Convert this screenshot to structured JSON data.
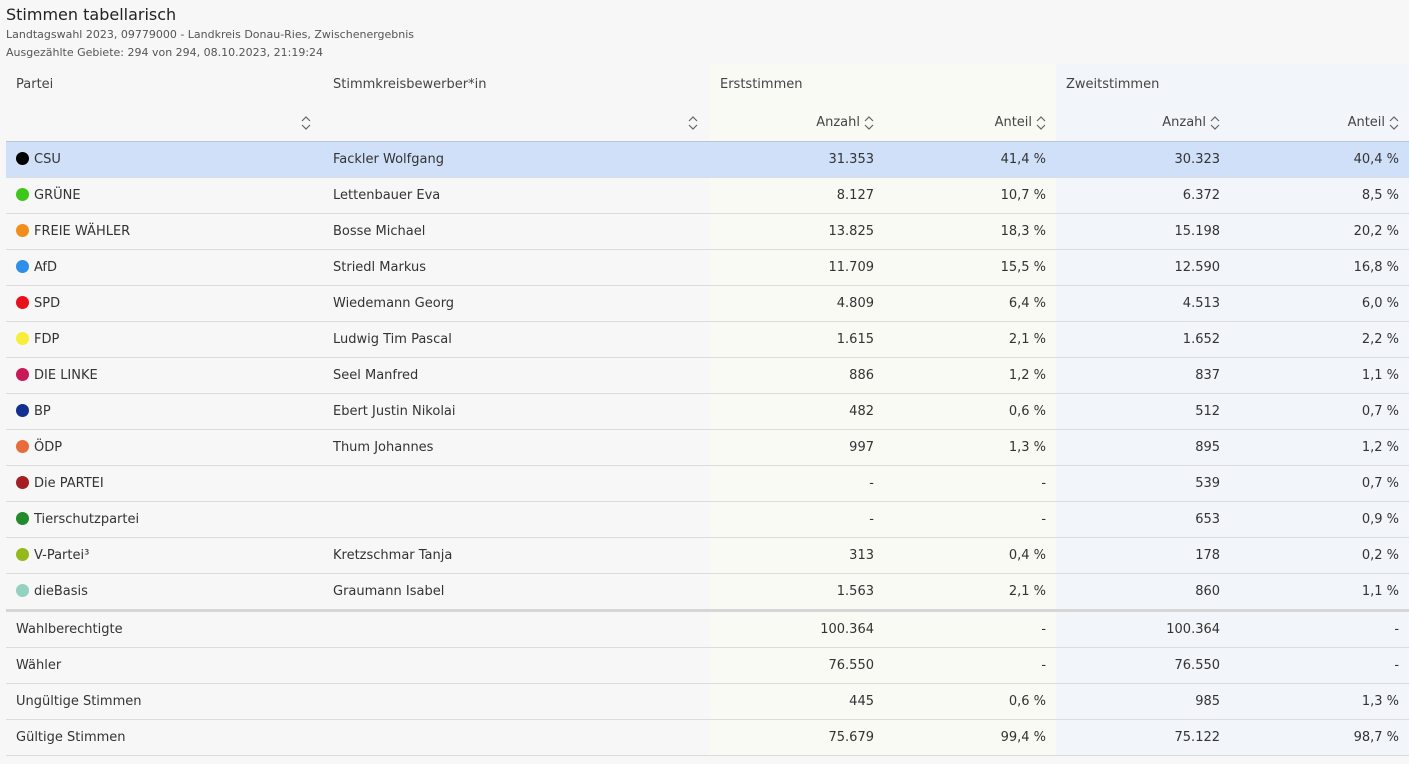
{
  "header": {
    "title": "Stimmen tabellarisch",
    "line1": "Landtagswahl 2023, 09779000 - Landkreis Donau-Ries, Zwischenergebnis",
    "line2": "Ausgezählte Gebiete: 294 von 294, 08.10.2023, 21:19:24"
  },
  "columns": {
    "partei": "Partei",
    "bewerber": "Stimmkreisbewerber*in",
    "erststimmen": "Erststimmen",
    "zweitstimmen": "Zweitstimmen",
    "anzahl": "Anzahl",
    "anteil": "Anteil"
  },
  "parties": [
    {
      "name": "CSU",
      "color": "#000000",
      "candidate": "Fackler Wolfgang",
      "e_anzahl": "31.353",
      "e_anteil": "41,4 %",
      "z_anzahl": "30.323",
      "z_anteil": "40,4 %",
      "selected": true
    },
    {
      "name": "GRÜNE",
      "color": "#3fc61a",
      "candidate": "Lettenbauer Eva",
      "e_anzahl": "8.127",
      "e_anteil": "10,7 %",
      "z_anzahl": "6.372",
      "z_anteil": "8,5 %"
    },
    {
      "name": "FREIE WÄHLER",
      "color": "#f28c1b",
      "candidate": "Bosse Michael",
      "e_anzahl": "13.825",
      "e_anteil": "18,3 %",
      "z_anzahl": "15.198",
      "z_anteil": "20,2 %"
    },
    {
      "name": "AfD",
      "color": "#2f8ee8",
      "candidate": "Striedl Markus",
      "e_anzahl": "11.709",
      "e_anteil": "15,5 %",
      "z_anzahl": "12.590",
      "z_anteil": "16,8 %"
    },
    {
      "name": "SPD",
      "color": "#e8101a",
      "candidate": "Wiedemann Georg",
      "e_anzahl": "4.809",
      "e_anteil": "6,4 %",
      "z_anzahl": "4.513",
      "z_anteil": "6,0 %"
    },
    {
      "name": "FDP",
      "color": "#f7ee3a",
      "candidate": "Ludwig Tim Pascal",
      "e_anzahl": "1.615",
      "e_anteil": "2,1 %",
      "z_anzahl": "1.652",
      "z_anteil": "2,2 %"
    },
    {
      "name": "DIE LINKE",
      "color": "#c71a57",
      "candidate": "Seel Manfred",
      "e_anzahl": "886",
      "e_anteil": "1,2 %",
      "z_anzahl": "837",
      "z_anteil": "1,1 %"
    },
    {
      "name": "BP",
      "color": "#11308f",
      "candidate": "Ebert Justin Nikolai",
      "e_anzahl": "482",
      "e_anteil": "0,6 %",
      "z_anzahl": "512",
      "z_anteil": "0,7 %"
    },
    {
      "name": "ÖDP",
      "color": "#e86b3a",
      "candidate": "Thum Johannes",
      "e_anzahl": "997",
      "e_anteil": "1,3 %",
      "z_anzahl": "895",
      "z_anteil": "1,2 %"
    },
    {
      "name": "Die PARTEI",
      "color": "#a31f24",
      "candidate": "",
      "e_anzahl": "-",
      "e_anteil": "-",
      "z_anzahl": "539",
      "z_anteil": "0,7 %"
    },
    {
      "name": "Tierschutzpartei",
      "color": "#238a2e",
      "candidate": "",
      "e_anzahl": "-",
      "e_anteil": "-",
      "z_anzahl": "653",
      "z_anteil": "0,9 %"
    },
    {
      "name": "V-Partei³",
      "color": "#93b91d",
      "candidate": "Kretzschmar Tanja",
      "e_anzahl": "313",
      "e_anteil": "0,4 %",
      "z_anzahl": "178",
      "z_anteil": "0,2 %"
    },
    {
      "name": "dieBasis",
      "color": "#93d1c0",
      "candidate": "Graumann Isabel",
      "e_anzahl": "1.563",
      "e_anteil": "2,1 %",
      "z_anzahl": "860",
      "z_anteil": "1,1 %"
    }
  ],
  "totals": [
    {
      "label": "Wahlberechtigte",
      "e_anzahl": "100.364",
      "e_anteil": "-",
      "z_anzahl": "100.364",
      "z_anteil": "-"
    },
    {
      "label": "Wähler",
      "e_anzahl": "76.550",
      "e_anteil": "-",
      "z_anzahl": "76.550",
      "z_anteil": "-"
    },
    {
      "label": "Ungültige Stimmen",
      "e_anzahl": "445",
      "e_anteil": "0,6 %",
      "z_anzahl": "985",
      "z_anteil": "1,3 %"
    },
    {
      "label": "Gültige Stimmen",
      "e_anzahl": "75.679",
      "e_anteil": "99,4 %",
      "z_anzahl": "75.122",
      "z_anteil": "98,7 %"
    }
  ]
}
